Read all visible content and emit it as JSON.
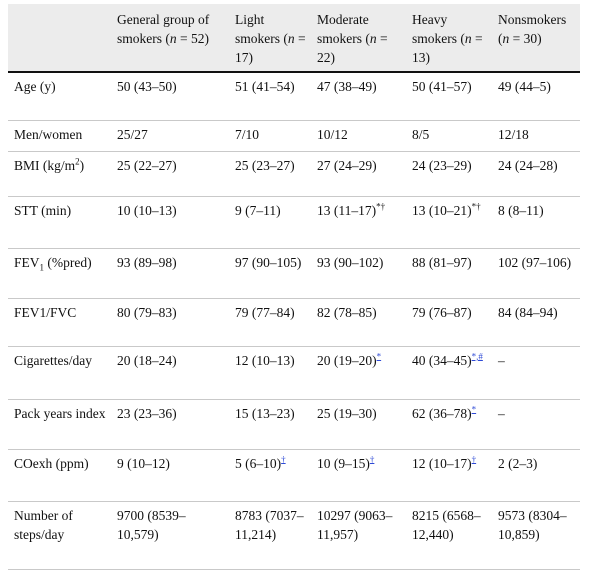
{
  "header": {
    "blank": "",
    "general": "General group of smokers (",
    "general_n": "n",
    "general_val": " = 52)",
    "light": "Light smokers (",
    "light_n": "n",
    "light_val": " = 17)",
    "moderate": "Moderate smokers (",
    "moderate_n": "n",
    "moderate_val": " = 22)",
    "heavy": "Heavy smokers (",
    "heavy_n": "n",
    "heavy_val": " = 13)",
    "non": "Nonsmokers (",
    "non_n": "n",
    "non_val": " = 30)"
  },
  "rows": {
    "age": {
      "label": "Age (y)",
      "c1": "50 (43–50)",
      "c2": "51 (41–54)",
      "c3": "47 (38–49)",
      "c4": "50 (41–57)",
      "c5": "49 (44–5)"
    },
    "men": {
      "label": "Men/women",
      "c1": "25/27",
      "c2": "7/10",
      "c3": "10/12",
      "c4": "8/5",
      "c5": "12/18"
    },
    "bmi": {
      "label": "BMI (kg/m",
      "label_sup": "2",
      "label_end": ")",
      "c1": "25 (22–27)",
      "c2": "25 (23–27)",
      "c3": "27 (24–29)",
      "c4": "24 (23–29)",
      "c5": "24 (24–28)"
    },
    "stt": {
      "label": "STT (min)",
      "c1": "10 (10–13)",
      "c2": "9 (7–11)",
      "c3": "13 (11–17)",
      "c3_sup": "*†",
      "c4": "13 (10–21)",
      "c4_sup": "*†",
      "c5": "8 (8–11)"
    },
    "fev": {
      "label": "FEV",
      "label_sub": "1",
      "label_end": " (%pred)",
      "c1": "93 (89–98)",
      "c2": "97 (90–105)",
      "c3": "93 (90–102)",
      "c4": "88 (81–97)",
      "c5": "102 (97–106)"
    },
    "ratio": {
      "label": "FEV1/FVC",
      "c1": "80 (79–83)",
      "c2": "79 (77–84)",
      "c3": "82 (78–85)",
      "c4": "79 (76–87)",
      "c5": "84 (84–94)"
    },
    "cig": {
      "label": "Cigarettes/day",
      "c1": "20 (18–24)",
      "c2": "12 (10–13)",
      "c3": "20 (19–20)",
      "c3_fn": "*",
      "c4": "40 (34–45)",
      "c4_fn": "*,#",
      "c5": "–"
    },
    "pack": {
      "label": "Pack years index",
      "c1": "23 (23–36)",
      "c2": "15 (13–23)",
      "c3": "25 (19–30)",
      "c4": "62 (36–78)",
      "c4_fn": "*",
      "c5": "–"
    },
    "co": {
      "label": "COexh (ppm)",
      "c1": "9 (10–12)",
      "c2": "5 (6–10)",
      "c2_fn": "†",
      "c3": "10 (9–15)",
      "c3_fn": "†",
      "c4": "12 (10–17)",
      "c4_fn": "†",
      "c5": "2 (2–3)"
    },
    "steps": {
      "label": "Number of steps/day",
      "c1": "9700 (8539–10,579)",
      "c2": "8783 (7037–11,214)",
      "c3": "10297 (9063–11,957)",
      "c4": "8215 (6568–12,440)",
      "c5": "9573 (8304–10,859)"
    }
  }
}
